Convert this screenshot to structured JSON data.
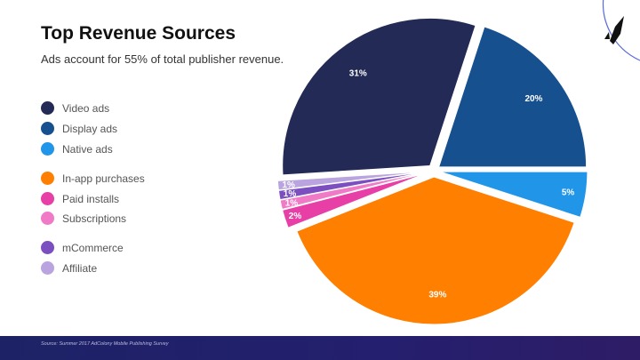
{
  "header": {
    "title": "Top Revenue Sources",
    "subtitle": "Ads account for 55% of total publisher revenue."
  },
  "legend": [
    {
      "label": "Video ads",
      "color": "#232a55"
    },
    {
      "label": "Display ads",
      "color": "#16508f"
    },
    {
      "label": "Native ads",
      "color": "#2196e8"
    },
    {
      "label": "In-app purchases",
      "color": "#ff7f00"
    },
    {
      "label": "Paid installs",
      "color": "#e83fa6"
    },
    {
      "label": "Subscriptions",
      "color": "#f07ac6"
    },
    {
      "label": "mCommerce",
      "color": "#7b4fc0"
    },
    {
      "label": "Affiliate",
      "color": "#b9a4e0"
    }
  ],
  "chart_data": {
    "type": "pie",
    "title": "Top Revenue Sources",
    "slices": [
      {
        "name": "Native ads",
        "value": 5,
        "label": "5%",
        "color": "#2196e8"
      },
      {
        "name": "In-app purchases",
        "value": 39,
        "label": "39%",
        "color": "#ff7f00"
      },
      {
        "name": "Paid installs",
        "value": 2,
        "label": "2%",
        "color": "#e83fa6"
      },
      {
        "name": "Subscriptions",
        "value": 1,
        "label": "1%",
        "color": "#f07ac6"
      },
      {
        "name": "mCommerce",
        "value": 1,
        "label": "1%",
        "color": "#7b4fc0"
      },
      {
        "name": "Affiliate",
        "value": 1,
        "label": "1%",
        "color": "#b9a4e0"
      },
      {
        "name": "Video ads",
        "value": 31,
        "label": "31%",
        "color": "#232a55"
      },
      {
        "name": "Display ads",
        "value": 20,
        "label": "20%",
        "color": "#16508f"
      }
    ]
  },
  "footer": {
    "source": "Source:  Summer 2017 AdColony Mobile Publishing Survey"
  },
  "logo": {
    "icon": "rocket-icon"
  }
}
